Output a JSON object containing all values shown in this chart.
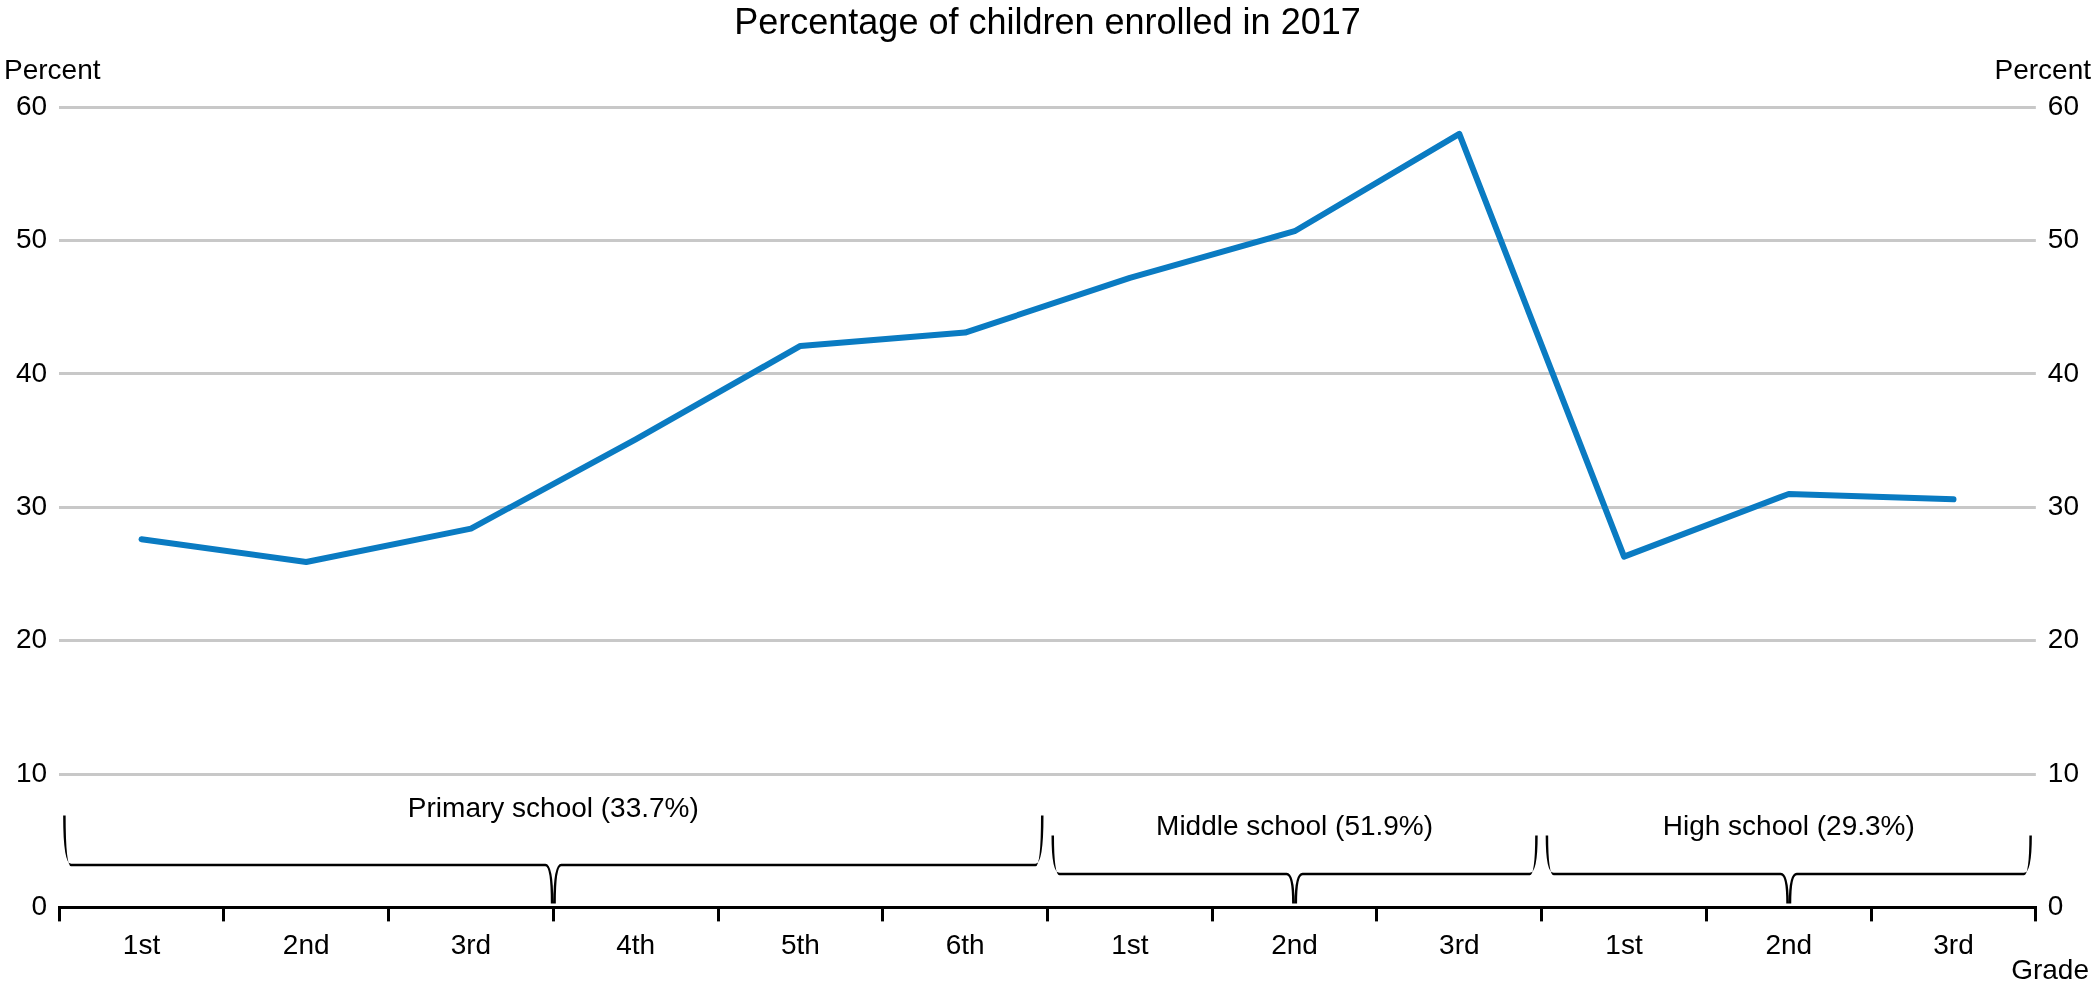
{
  "chart_data": {
    "type": "line",
    "title": "Percentage of children enrolled in 2017",
    "xlabel": "Grade",
    "ylabel": "Percent",
    "y2label": "Percent",
    "categories": [
      "1st",
      "2nd",
      "3rd",
      "4th",
      "5th",
      "6th",
      "1st",
      "2nd",
      "3rd",
      "1st",
      "2nd",
      "3rd"
    ],
    "series": [
      {
        "color": "#0a7bc2",
        "values": [
          27.6,
          25.9,
          28.4,
          35.1,
          42.1,
          43.1,
          47.2,
          50.7,
          58.0,
          26.3,
          31.0,
          30.6
        ]
      }
    ],
    "ylim": [
      0,
      60
    ],
    "yticks": [
      0,
      10,
      20,
      30,
      40,
      50,
      60
    ],
    "y2lim": [
      0,
      60
    ],
    "y2ticks": [
      0,
      10,
      20,
      30,
      40,
      50,
      60
    ],
    "grid": "y",
    "legend": false,
    "marker": "none",
    "line_style": "solid",
    "annotations": [
      "Primary school (33.7%)",
      "Middle school (51.9%)",
      "High school (29.3%)"
    ]
  }
}
